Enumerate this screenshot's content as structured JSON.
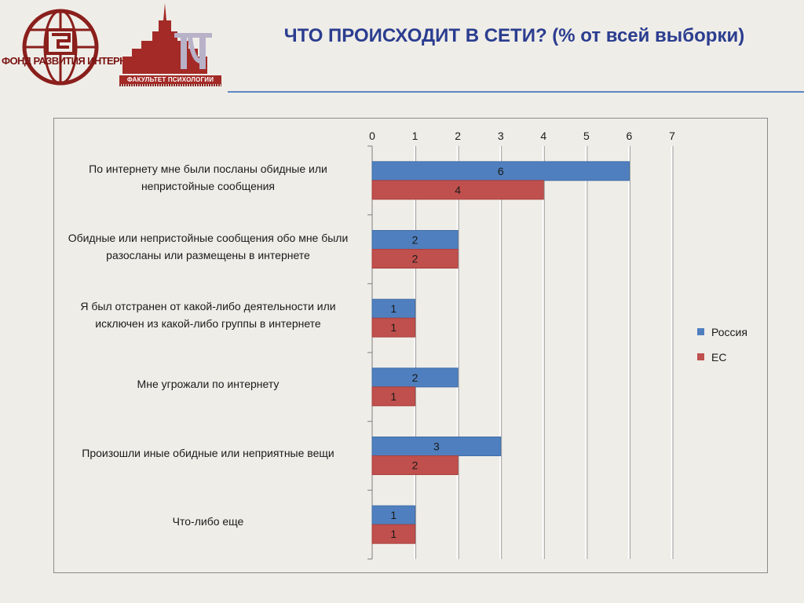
{
  "header": {
    "title": "ЧТО ПРОИСХОДИТ В СЕТИ? (% от всей выборки)",
    "fund_logo_text": "ФОНД РАЗВИТИЯ ИНТЕРНЕТ",
    "faculty_logo_text": "ФАКУЛЬТЕТ ПСИХОЛОГИИ"
  },
  "colors": {
    "russia": "#4f7fbe",
    "eu": "#c0504d",
    "title": "#2b3d8f",
    "logo": "#a32a26"
  },
  "chart_data": {
    "type": "bar",
    "orientation": "horizontal",
    "title": "",
    "xlabel": "",
    "ylabel": "",
    "xlim": [
      0,
      7
    ],
    "ticks": [
      "0",
      "1",
      "2",
      "3",
      "4",
      "5",
      "6",
      "7"
    ],
    "grid": true,
    "legend_position": "right",
    "categories": [
      "По интернету мне были посланы обидные или непристойные сообщения",
      "Обидные или непристойные сообщения обо мне были разосланы или размещены в интернете",
      "Я был отстранен от какой-либо деятельности или исключен из какой-либо группы в интернете",
      "Мне угрожали по интернету",
      "Произошли иные обидные или неприятные вещи",
      "Что-либо еще"
    ],
    "series": [
      {
        "name": "Россия",
        "color": "#4f7fbe",
        "values": [
          6,
          2,
          1,
          2,
          3,
          1
        ]
      },
      {
        "name": "ЕС",
        "color": "#c0504d",
        "values": [
          4,
          2,
          1,
          1,
          2,
          1
        ]
      }
    ]
  }
}
